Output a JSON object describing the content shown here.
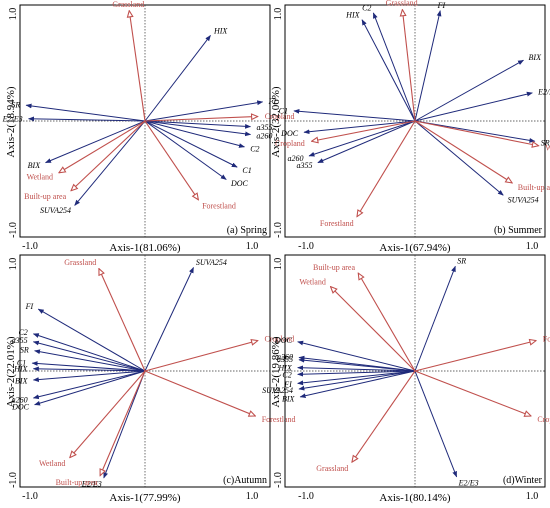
{
  "chart_data": [
    {
      "type": "biplot",
      "caption": "(a) Spring",
      "xlabel": "Axis-1(81.06%)",
      "ylabel": "Axis-2(18.94%)",
      "xlim": [
        -1.0,
        1.0
      ],
      "ylim": [
        -1.0,
        1.0
      ],
      "xticks": [
        "-1.0",
        "1.0"
      ],
      "yticks": [
        "1.0",
        "-1.0"
      ],
      "species": [
        {
          "label": "HIX",
          "x": 0.54,
          "y": 0.76
        },
        {
          "label": "FI",
          "x": 0.97,
          "y": 0.17
        },
        {
          "label": "a355",
          "x": 0.87,
          "y": -0.05
        },
        {
          "label": "a260",
          "x": 0.87,
          "y": -0.12
        },
        {
          "label": "C2",
          "x": 0.82,
          "y": -0.23
        },
        {
          "label": "C1",
          "x": 0.76,
          "y": -0.41
        },
        {
          "label": "DOC",
          "x": 0.67,
          "y": -0.52
        },
        {
          "label": "SR",
          "x": -0.98,
          "y": 0.14
        },
        {
          "label": "E2/E3",
          "x": -0.96,
          "y": 0.02
        },
        {
          "label": "BIX",
          "x": -0.82,
          "y": -0.37
        },
        {
          "label": "SUVA254",
          "x": -0.58,
          "y": -0.75
        }
      ],
      "environment": [
        {
          "label": "Grassland",
          "x": -0.13,
          "y": 0.98
        },
        {
          "label": "Cropland",
          "x": 0.93,
          "y": 0.04
        },
        {
          "label": "Forestland",
          "x": 0.44,
          "y": -0.7
        },
        {
          "label": "Wetland",
          "x": -0.71,
          "y": -0.46
        },
        {
          "label": "Built-up area",
          "x": -0.61,
          "y": -0.62
        }
      ]
    },
    {
      "type": "biplot",
      "caption": "(b) Summer",
      "xlabel": "Axis-1(67.94%)",
      "ylabel": "Axis-2(32.06%)",
      "xlim": [
        -1.0,
        1.0
      ],
      "ylim": [
        -1.0,
        1.0
      ],
      "xticks": [
        "-1.0",
        "1.0"
      ],
      "yticks": [
        "1.0",
        "-1.0"
      ],
      "species": [
        {
          "label": "HIX",
          "x": -0.42,
          "y": 0.9
        },
        {
          "label": "C2",
          "x": -0.33,
          "y": 0.96
        },
        {
          "label": "FI",
          "x": 0.2,
          "y": 0.98
        },
        {
          "label": "BIX",
          "x": 0.86,
          "y": 0.54
        },
        {
          "label": "E2/E3",
          "x": 0.93,
          "y": 0.25
        },
        {
          "label": "SR",
          "x": 0.95,
          "y": -0.18
        },
        {
          "label": "SUVA254",
          "x": 0.7,
          "y": -0.66
        },
        {
          "label": "C1",
          "x": -0.96,
          "y": 0.09
        },
        {
          "label": "DOC",
          "x": -0.88,
          "y": -0.1
        },
        {
          "label": "a260",
          "x": -0.84,
          "y": -0.31
        },
        {
          "label": "a355",
          "x": -0.77,
          "y": -0.37
        }
      ],
      "environment": [
        {
          "label": "Grassland",
          "x": -0.1,
          "y": 0.99
        },
        {
          "label": "Cropland",
          "x": -0.82,
          "y": -0.18
        },
        {
          "label": "Wetland",
          "x": 0.98,
          "y": -0.22
        },
        {
          "label": "Built-up area",
          "x": 0.77,
          "y": -0.55
        },
        {
          "label": "Forestland",
          "x": -0.46,
          "y": -0.85
        }
      ]
    },
    {
      "type": "biplot",
      "caption": "(c)Autumn",
      "xlabel": "Axis-1(77.99%)",
      "ylabel": "Axis-2(22.01%)",
      "xlim": [
        -1.0,
        1.0
      ],
      "ylim": [
        -1.0,
        1.0
      ],
      "xticks": [
        "-1.0",
        "1.0"
      ],
      "yticks": [
        "1.0",
        "-1.0"
      ],
      "species": [
        {
          "label": "SUVA254",
          "x": 0.4,
          "y": 0.92
        },
        {
          "label": "FI",
          "x": -0.88,
          "y": 0.55
        },
        {
          "label": "C2",
          "x": -0.92,
          "y": 0.33
        },
        {
          "label": "a355",
          "x": -0.92,
          "y": 0.26
        },
        {
          "label": "SR",
          "x": -0.91,
          "y": 0.18
        },
        {
          "label": "C1",
          "x": -0.93,
          "y": 0.07
        },
        {
          "label": "HIX",
          "x": -0.92,
          "y": 0.02
        },
        {
          "label": "BIX",
          "x": -0.92,
          "y": -0.08
        },
        {
          "label": "a260",
          "x": -0.92,
          "y": -0.24
        },
        {
          "label": "DOC",
          "x": -0.91,
          "y": -0.3
        },
        {
          "label": "E2/E3",
          "x": -0.34,
          "y": -0.95
        }
      ],
      "environment": [
        {
          "label": "Grassland",
          "x": -0.38,
          "y": 0.91
        },
        {
          "label": "Cropland",
          "x": 0.93,
          "y": 0.27
        },
        {
          "label": "Forestland",
          "x": 0.91,
          "y": -0.4
        },
        {
          "label": "Wetland",
          "x": -0.62,
          "y": -0.77
        },
        {
          "label": "Built-up area",
          "x": -0.37,
          "y": -0.93
        }
      ]
    },
    {
      "type": "biplot",
      "caption": "(d)Winter",
      "xlabel": "Axis-1(80.14%)",
      "ylabel": "Axis-2(19.86%)",
      "xlim": [
        -1.0,
        1.0
      ],
      "ylim": [
        -1.0,
        1.0
      ],
      "xticks": [
        "-1.0",
        "1.0"
      ],
      "yticks": [
        "1.0",
        "-1.0"
      ],
      "species": [
        {
          "label": "SR",
          "x": 0.32,
          "y": 0.93
        },
        {
          "label": "DOC",
          "x": -0.93,
          "y": 0.26
        },
        {
          "label": "a260",
          "x": -0.92,
          "y": 0.12
        },
        {
          "label": "a355",
          "x": -0.92,
          "y": 0.1
        },
        {
          "label": "HIX",
          "x": -0.93,
          "y": 0.03
        },
        {
          "label": "C2",
          "x": -0.93,
          "y": -0.03
        },
        {
          "label": "FI",
          "x": -0.93,
          "y": -0.11
        },
        {
          "label": "SUVA254",
          "x": -0.92,
          "y": -0.16
        },
        {
          "label": "BIX",
          "x": -0.91,
          "y": -0.23
        },
        {
          "label": "E2/E3",
          "x": 0.33,
          "y": -0.94
        }
      ],
      "environment": [
        {
          "label": "Built-up area",
          "x": -0.45,
          "y": 0.87
        },
        {
          "label": "Wetland",
          "x": -0.67,
          "y": 0.75
        },
        {
          "label": "Forestland",
          "x": 0.96,
          "y": 0.27
        },
        {
          "label": "Cropland",
          "x": 0.92,
          "y": -0.4
        },
        {
          "label": "Grassland",
          "x": -0.5,
          "y": -0.81
        }
      ]
    }
  ],
  "colors": {
    "species": "#1f2a7a",
    "environment": "#c0504d"
  }
}
